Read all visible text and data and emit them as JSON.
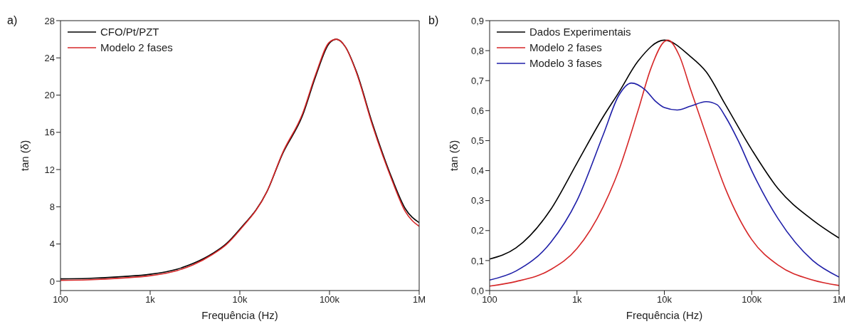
{
  "chart_data": [
    {
      "type": "line",
      "title": "a)",
      "xlabel": "Frequência (Hz)",
      "ylabel": "tan (δ)",
      "log": "x",
      "xlim": [
        100,
        1000000
      ],
      "xticks": [
        100,
        {
          "value": 1000,
          "label": "1k"
        },
        {
          "value": 10000,
          "label": "10k"
        },
        {
          "value": 100000,
          "label": "100k"
        },
        {
          "value": 1000000,
          "label": "1M"
        }
      ],
      "ylim": [
        -1,
        28
      ],
      "yticks": [
        0,
        4,
        8,
        12,
        16,
        20,
        24,
        28
      ],
      "grid": false,
      "legend": "top left",
      "marker": "none",
      "line_style": "solid",
      "series": [
        {
          "name": "CFO/Pt/PZT",
          "color": "#000000",
          "x": [
            100,
            200,
            500,
            1000,
            2000,
            3000,
            5000,
            7000,
            10000,
            20000,
            30000,
            50000,
            70000,
            100000,
            120000,
            150000,
            200000,
            300000,
            500000,
            700000,
            1000000
          ],
          "values": [
            0.25,
            0.3,
            0.5,
            0.75,
            1.3,
            1.9,
            3.0,
            4.0,
            5.6,
            9.6,
            13.7,
            17.8,
            22,
            25.6,
            26,
            25.2,
            22.5,
            17,
            11,
            7.8,
            6.3
          ]
        },
        {
          "name": "Modelo 2 fases",
          "color": "#d62728",
          "x": [
            100,
            200,
            500,
            1000,
            2000,
            3000,
            5000,
            7000,
            10000,
            20000,
            30000,
            50000,
            70000,
            100000,
            120000,
            150000,
            200000,
            300000,
            500000,
            700000,
            1000000
          ],
          "values": [
            0.1,
            0.15,
            0.35,
            0.6,
            1.15,
            1.75,
            2.9,
            3.9,
            5.5,
            9.6,
            13.8,
            18,
            22.2,
            25.7,
            26,
            25.2,
            22.4,
            16.8,
            10.8,
            7.5,
            5.9
          ]
        }
      ]
    },
    {
      "type": "line",
      "title": "b)",
      "xlabel": "Frequência (Hz)",
      "ylabel": "tan (δ)",
      "log": "x",
      "xlim": [
        100,
        1000000
      ],
      "xticks": [
        100,
        {
          "value": 1000,
          "label": "1k"
        },
        {
          "value": 10000,
          "label": "10k"
        },
        {
          "value": 100000,
          "label": "100k"
        },
        {
          "value": 1000000,
          "label": "1M"
        }
      ],
      "ylim": [
        0,
        0.9
      ],
      "yticks": [
        {
          "value": 0,
          "label": "0,0"
        },
        {
          "value": 0.1,
          "label": "0,1"
        },
        {
          "value": 0.2,
          "label": "0,2"
        },
        {
          "value": 0.3,
          "label": "0,3"
        },
        {
          "value": 0.4,
          "label": "0,4"
        },
        {
          "value": 0.5,
          "label": "0,5"
        },
        {
          "value": 0.6,
          "label": "0,6"
        },
        {
          "value": 0.7,
          "label": "0,7"
        },
        {
          "value": 0.8,
          "label": "0,8"
        },
        {
          "value": 0.9,
          "label": "0,9"
        }
      ],
      "grid": false,
      "legend": "top left",
      "marker": "none",
      "line_style": "solid",
      "series": [
        {
          "name": "Dados Experimentais",
          "color": "#000000",
          "x": [
            100,
            200,
            500,
            1000,
            2000,
            3000,
            5000,
            10000,
            20000,
            30000,
            50000,
            100000,
            200000,
            500000,
            1000000
          ],
          "values": [
            0.105,
            0.142,
            0.27,
            0.425,
            0.58,
            0.66,
            0.765,
            0.835,
            0.78,
            0.73,
            0.62,
            0.47,
            0.34,
            0.235,
            0.175
          ]
        },
        {
          "name": "Modelo 2 fases",
          "color": "#d62728",
          "x": [
            100,
            200,
            500,
            1000,
            2000,
            3000,
            5000,
            7000,
            10000,
            11000,
            15000,
            20000,
            30000,
            50000,
            100000,
            200000,
            500000,
            1000000
          ],
          "values": [
            0.015,
            0.03,
            0.07,
            0.14,
            0.28,
            0.4,
            0.6,
            0.74,
            0.83,
            0.835,
            0.78,
            0.67,
            0.52,
            0.34,
            0.17,
            0.085,
            0.035,
            0.017
          ]
        },
        {
          "name": "Modelo 3 fases",
          "color": "#1f1fa8",
          "x": [
            100,
            200,
            500,
            1000,
            2000,
            3000,
            4200,
            6000,
            8000,
            10000,
            14000,
            20000,
            30000,
            40000,
            50000,
            70000,
            100000,
            200000,
            500000,
            1000000
          ],
          "values": [
            0.035,
            0.065,
            0.16,
            0.3,
            0.52,
            0.65,
            0.692,
            0.67,
            0.63,
            0.61,
            0.602,
            0.615,
            0.63,
            0.62,
            0.58,
            0.5,
            0.4,
            0.24,
            0.1,
            0.045
          ]
        }
      ]
    }
  ]
}
